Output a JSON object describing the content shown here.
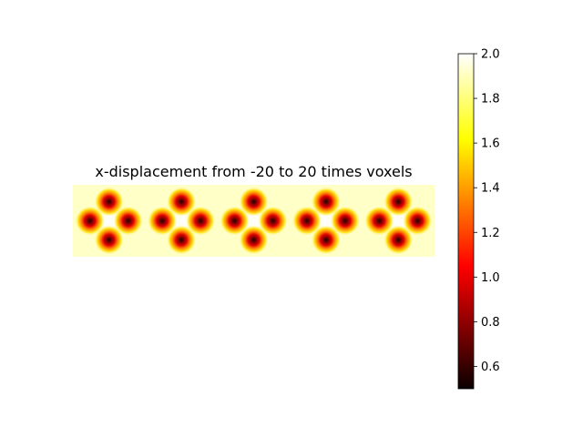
{
  "chart_data": {
    "type": "heatmap",
    "title": "x-displacement from -20 to 20 times voxels",
    "xlabel": "",
    "ylabel": "",
    "axes_visible": false,
    "grid": false,
    "panels": 5,
    "colormap": "hot",
    "colorbar": {
      "min": 0.5,
      "max": 2.0,
      "ticks": [
        0.6,
        0.8,
        1.0,
        1.2,
        1.4,
        1.6,
        1.8,
        2.0
      ],
      "tick_labels": [
        "0.6",
        "0.8",
        "1.0",
        "1.2",
        "1.4",
        "1.6",
        "1.8",
        "2.0"
      ],
      "placement": "right"
    }
  }
}
